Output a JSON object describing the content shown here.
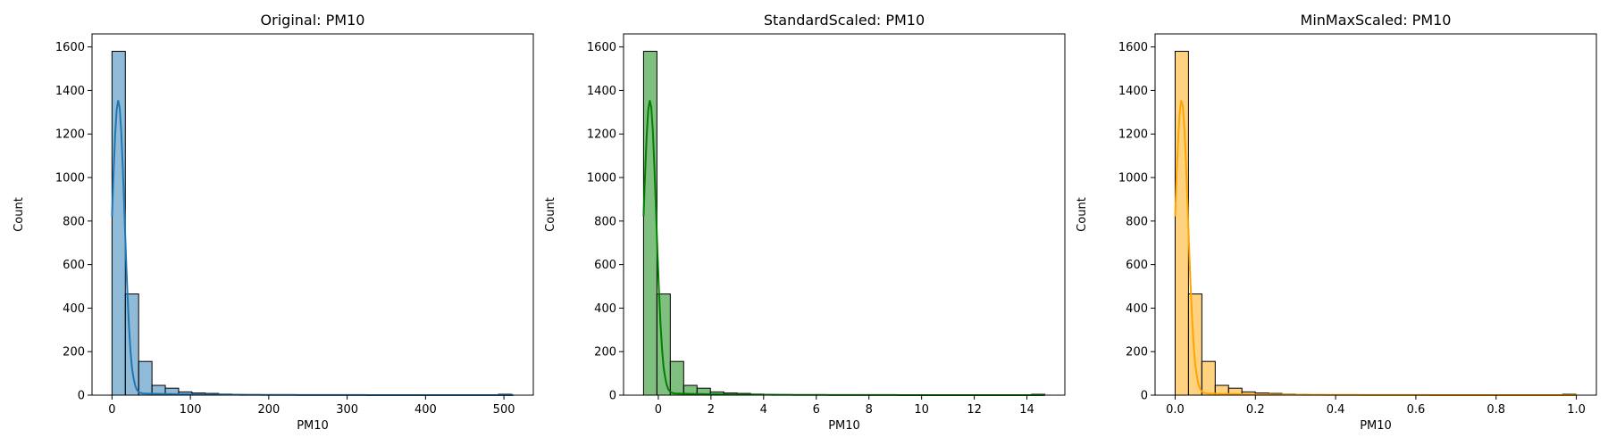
{
  "chart_data": [
    {
      "type": "bar",
      "title": "Original: PM10",
      "xlabel": "PM10",
      "ylabel": "Count",
      "color": "#1f77b4",
      "bin_start": 0,
      "bin_width": 17,
      "counts": [
        1580,
        465,
        155,
        45,
        32,
        15,
        10,
        8,
        5,
        3,
        2,
        2,
        1,
        1,
        1,
        1,
        1,
        1,
        1,
        1,
        1,
        1,
        1,
        1,
        1,
        1,
        1,
        1,
        1,
        4
      ],
      "kde": {
        "x_min": 0,
        "x_max": 512,
        "peak_x": 8,
        "peak_y": 1355,
        "spread": 8
      },
      "xlim": [
        -25.5,
        537.5
      ],
      "ylim": [
        0,
        1660
      ],
      "xticks": [
        0,
        100,
        200,
        300,
        400,
        500
      ],
      "xtick_labels": [
        "0",
        "100",
        "200",
        "300",
        "400",
        "500"
      ],
      "yticks": [
        0,
        200,
        400,
        600,
        800,
        1000,
        1200,
        1400,
        1600
      ],
      "ytick_labels": [
        "0",
        "200",
        "400",
        "600",
        "800",
        "1000",
        "1200",
        "1400",
        "1600"
      ]
    },
    {
      "type": "bar",
      "title": "StandardScaled: PM10",
      "xlabel": "PM10",
      "ylabel": "Count",
      "color": "#008000",
      "bin_start": -0.56,
      "bin_width": 0.508,
      "counts": [
        1580,
        465,
        155,
        45,
        32,
        15,
        10,
        8,
        5,
        3,
        2,
        2,
        1,
        1,
        1,
        1,
        1,
        1,
        1,
        1,
        1,
        1,
        1,
        1,
        1,
        1,
        1,
        1,
        1,
        4
      ],
      "kde": {
        "x_min": -0.56,
        "x_max": 14.68,
        "peak_x": -0.32,
        "peak_y": 1355,
        "spread": 0.24
      },
      "xlim": [
        -1.32,
        15.44
      ],
      "ylim": [
        0,
        1660
      ],
      "xticks": [
        0,
        2,
        4,
        6,
        8,
        10,
        12,
        14
      ],
      "xtick_labels": [
        "0",
        "2",
        "4",
        "6",
        "8",
        "10",
        "12",
        "14"
      ],
      "yticks": [
        0,
        200,
        400,
        600,
        800,
        1000,
        1200,
        1400,
        1600
      ],
      "ytick_labels": [
        "0",
        "200",
        "400",
        "600",
        "800",
        "1000",
        "1200",
        "1400",
        "1600"
      ]
    },
    {
      "type": "bar",
      "title": "MinMaxScaled: PM10",
      "xlabel": "PM10",
      "ylabel": "Count",
      "color": "#ffa500",
      "bin_start": 0,
      "bin_width": 0.0333,
      "counts": [
        1580,
        465,
        155,
        45,
        32,
        15,
        10,
        8,
        5,
        3,
        2,
        2,
        1,
        1,
        1,
        1,
        1,
        1,
        1,
        1,
        1,
        1,
        1,
        1,
        1,
        1,
        1,
        1,
        1,
        4
      ],
      "kde": {
        "x_min": 0,
        "x_max": 1.0,
        "peak_x": 0.016,
        "peak_y": 1355,
        "spread": 0.016
      },
      "xlim": [
        -0.05,
        1.05
      ],
      "ylim": [
        0,
        1660
      ],
      "xticks": [
        0,
        0.2,
        0.4,
        0.6,
        0.8,
        1.0
      ],
      "xtick_labels": [
        "0.0",
        "0.2",
        "0.4",
        "0.6",
        "0.8",
        "1.0"
      ],
      "yticks": [
        0,
        200,
        400,
        600,
        800,
        1000,
        1200,
        1400,
        1600
      ],
      "ytick_labels": [
        "0",
        "200",
        "400",
        "600",
        "800",
        "1000",
        "1200",
        "1400",
        "1600"
      ]
    }
  ]
}
